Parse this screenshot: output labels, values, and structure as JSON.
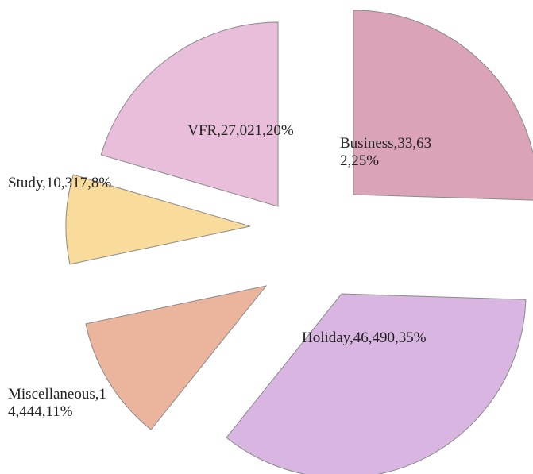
{
  "chart_data": {
    "type": "pie",
    "values": [
      33632,
      46490,
      14444,
      10317,
      27021
    ],
    "value_labels": [
      "Business,33,632,25%",
      "Holiday,46,490,35%",
      "Miscellaneous,14,444,11%",
      "Study,10,317,8%",
      "VFR,27,021,20%"
    ],
    "colors": [
      "#dba3b8",
      "#d9b6e2",
      "#ebb49c",
      "#f9dc9c",
      "#e9bedb"
    ],
    "start_angle": 0,
    "direction": "clockwise"
  }
}
